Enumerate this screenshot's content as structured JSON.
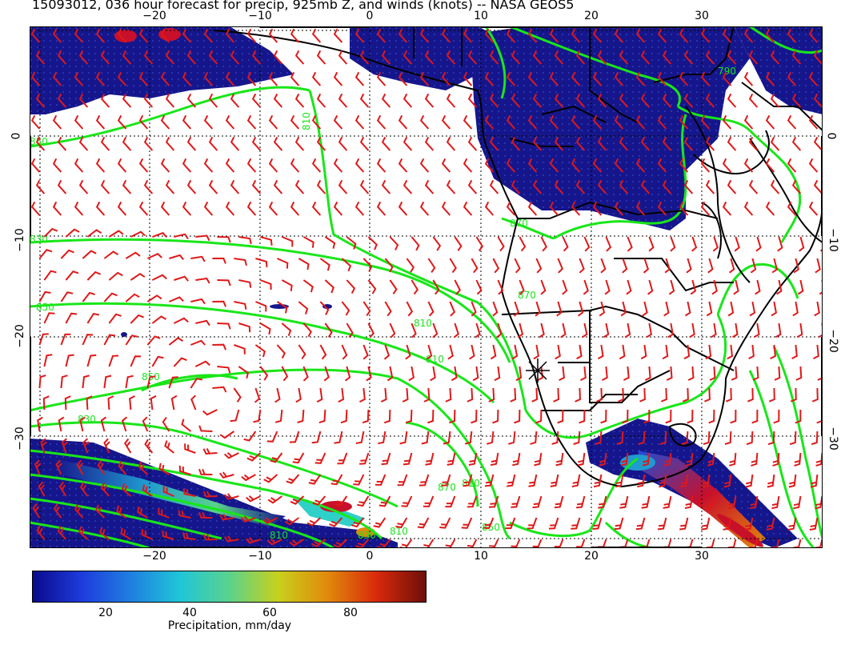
{
  "title": "15093012, 036 hour forecast for precip, 925mb Z, and winds (knots) -- NASA GEOS5",
  "axes": {
    "lon_ticks": [
      "−20",
      "−10",
      "0",
      "10",
      "20",
      "30"
    ],
    "lat_ticks": [
      "0",
      "−10",
      "−20",
      "−30"
    ]
  },
  "contour_labels": [
    "810",
    "850",
    "870",
    "830",
    "850",
    "870",
    "810",
    "850",
    "830",
    "810",
    "850",
    "810",
    "810",
    "810",
    "870",
    "830",
    "790"
  ],
  "colorbar": {
    "title": "Precipitation, mm/day",
    "ticks": [
      "20",
      "40",
      "60",
      "80"
    ],
    "colors": [
      "#0a0a8c",
      "#1e3cdc",
      "#1f7fe0",
      "#1fc6d8",
      "#5ad28c",
      "#c8d01c",
      "#e08a0c",
      "#d82a0a",
      "#6e0f0a"
    ]
  },
  "colors": {
    "precip_low": "#16168c",
    "precip_mid": "#1f9bd0",
    "precip_high": "#c8102a",
    "contours": "#19e619",
    "barbs": "#e01818",
    "coast": "#000000",
    "grid": "#000000"
  },
  "marker": "✳"
}
